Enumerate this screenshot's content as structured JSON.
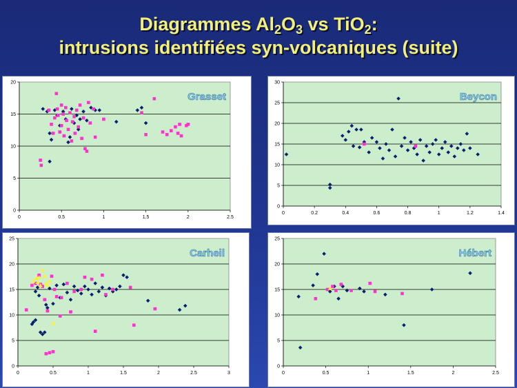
{
  "title": {
    "line1_prefix": "Diagrammes Al",
    "line1_sub1": "2",
    "line1_mid1": "O",
    "line1_sub2": "3",
    "line1_mid2": " vs TiO",
    "line1_sub3": "2",
    "line1_suffix": ":",
    "line2": "intrusions identifiées syn-volcaniques (suite)"
  },
  "colors": {
    "plot_bg": "#cceecc",
    "gridline": "#000000",
    "series_navy": "#0a1f6e",
    "series_magenta": "#ff33cc",
    "series_yellow": "#ffee33"
  },
  "chart_data": [
    {
      "id": "grasset",
      "type": "scatter",
      "title": "Grasset",
      "xlim": [
        0,
        2.5
      ],
      "ylim": [
        0,
        20
      ],
      "xticks": [
        0,
        0.5,
        1,
        1.5,
        2,
        2.5
      ],
      "xtick_labels": [
        "0",
        "0.5",
        "1",
        "1.5",
        "2",
        "2.5"
      ],
      "yticks": [
        0,
        5,
        10,
        15,
        20
      ],
      "ytick_labels": [
        "0",
        "5",
        "10",
        "15",
        "20"
      ],
      "series": [
        {
          "name": "navy",
          "marker": "diamond",
          "color": "#0a1f6e",
          "points": [
            [
              0.28,
              15.8
            ],
            [
              0.33,
              15.4
            ],
            [
              0.36,
              12.0
            ],
            [
              0.38,
              11.0
            ],
            [
              0.42,
              15.6
            ],
            [
              0.45,
              14.8
            ],
            [
              0.48,
              13.2
            ],
            [
              0.52,
              15.4
            ],
            [
              0.55,
              14.2
            ],
            [
              0.58,
              10.6
            ],
            [
              0.6,
              11.4
            ],
            [
              0.62,
              15.8
            ],
            [
              0.65,
              13.6
            ],
            [
              0.68,
              14.8
            ],
            [
              0.7,
              12.6
            ],
            [
              0.72,
              14.2
            ],
            [
              0.76,
              15.4
            ],
            [
              0.8,
              14.0
            ],
            [
              0.85,
              16.0
            ],
            [
              0.9,
              15.6
            ],
            [
              0.95,
              15.6
            ],
            [
              0.36,
              7.6
            ],
            [
              1.15,
              13.8
            ],
            [
              1.4,
              15.6
            ],
            [
              1.45,
              16.0
            ],
            [
              1.5,
              13.6
            ]
          ]
        },
        {
          "name": "magenta",
          "marker": "square",
          "color": "#ff33cc",
          "points": [
            [
              0.25,
              7.8
            ],
            [
              0.26,
              7.0
            ],
            [
              0.35,
              15.6
            ],
            [
              0.38,
              13.4
            ],
            [
              0.4,
              12.0
            ],
            [
              0.42,
              14.4
            ],
            [
              0.44,
              18.2
            ],
            [
              0.45,
              15.8
            ],
            [
              0.46,
              14.8
            ],
            [
              0.48,
              12.2
            ],
            [
              0.5,
              16.4
            ],
            [
              0.5,
              13.2
            ],
            [
              0.52,
              15.0
            ],
            [
              0.53,
              11.6
            ],
            [
              0.55,
              16.0
            ],
            [
              0.56,
              14.0
            ],
            [
              0.58,
              12.6
            ],
            [
              0.6,
              15.2
            ],
            [
              0.62,
              10.8
            ],
            [
              0.63,
              13.8
            ],
            [
              0.65,
              14.6
            ],
            [
              0.66,
              12.0
            ],
            [
              0.68,
              15.6
            ],
            [
              0.7,
              13.0
            ],
            [
              0.72,
              16.4
            ],
            [
              0.74,
              11.2
            ],
            [
              0.76,
              14.4
            ],
            [
              0.78,
              9.6
            ],
            [
              0.8,
              9.2
            ],
            [
              0.82,
              16.8
            ],
            [
              0.84,
              13.6
            ],
            [
              0.88,
              15.8
            ],
            [
              0.9,
              11.4
            ],
            [
              1.0,
              14.2
            ],
            [
              1.45,
              15.2
            ],
            [
              1.5,
              11.8
            ],
            [
              1.6,
              17.4
            ],
            [
              1.7,
              12.2
            ],
            [
              1.75,
              11.8
            ],
            [
              1.8,
              12.4
            ],
            [
              1.85,
              13.0
            ],
            [
              1.88,
              12.0
            ],
            [
              1.9,
              13.4
            ],
            [
              1.92,
              11.6
            ],
            [
              1.98,
              13.2
            ],
            [
              2.0,
              13.4
            ]
          ]
        }
      ]
    },
    {
      "id": "beycon",
      "type": "scatter",
      "title": "Beycon",
      "xlim": [
        0,
        1.4
      ],
      "ylim": [
        0,
        30
      ],
      "xticks": [
        0,
        0.2,
        0.4,
        0.6,
        0.8,
        1,
        1.2,
        1.4
      ],
      "xtick_labels": [
        "0",
        "0.2",
        "0.4",
        "0.6",
        "0.8",
        "1",
        "1.2",
        "1.4"
      ],
      "yticks": [
        0,
        5,
        10,
        15,
        20,
        25,
        30
      ],
      "ytick_labels": [
        "0",
        "5",
        "10",
        "15",
        "20",
        "25",
        "30"
      ],
      "series": [
        {
          "name": "navy",
          "marker": "diamond",
          "color": "#0a1f6e",
          "points": [
            [
              0.02,
              12.5
            ],
            [
              0.3,
              5.2
            ],
            [
              0.3,
              4.4
            ],
            [
              0.38,
              17.0
            ],
            [
              0.4,
              16.0
            ],
            [
              0.42,
              18.0
            ],
            [
              0.44,
              19.4
            ],
            [
              0.45,
              14.5
            ],
            [
              0.47,
              18.5
            ],
            [
              0.49,
              14.2
            ],
            [
              0.5,
              18.5
            ],
            [
              0.52,
              15.5
            ],
            [
              0.55,
              13.0
            ],
            [
              0.57,
              16.5
            ],
            [
              0.6,
              15.5
            ],
            [
              0.62,
              14.0
            ],
            [
              0.64,
              11.5
            ],
            [
              0.66,
              15.0
            ],
            [
              0.68,
              13.5
            ],
            [
              0.7,
              18.5
            ],
            [
              0.72,
              12.0
            ],
            [
              0.74,
              26.0
            ],
            [
              0.76,
              14.5
            ],
            [
              0.78,
              16.5
            ],
            [
              0.8,
              13.5
            ],
            [
              0.82,
              15.5
            ],
            [
              0.84,
              14.0
            ],
            [
              0.86,
              12.5
            ],
            [
              0.88,
              16.0
            ],
            [
              0.9,
              11.0
            ],
            [
              0.92,
              14.5
            ],
            [
              0.94,
              13.0
            ],
            [
              0.96,
              15.0
            ],
            [
              0.98,
              16.0
            ],
            [
              1.0,
              12.5
            ],
            [
              1.02,
              14.0
            ],
            [
              1.04,
              15.5
            ],
            [
              1.06,
              13.0
            ],
            [
              1.08,
              14.5
            ],
            [
              1.1,
              12.0
            ],
            [
              1.12,
              14.0
            ],
            [
              1.14,
              15.0
            ],
            [
              1.16,
              13.5
            ],
            [
              1.18,
              17.5
            ],
            [
              1.2,
              14.0
            ],
            [
              1.25,
              12.5
            ]
          ]
        },
        {
          "name": "magenta",
          "marker": "square",
          "color": "#ff33cc",
          "points": [
            [
              0.52,
              15.0
            ],
            [
              0.85,
              14.5
            ]
          ]
        }
      ]
    },
    {
      "id": "carheil",
      "type": "scatter",
      "title": "Carheil",
      "xlim": [
        0,
        3
      ],
      "ylim": [
        0,
        25
      ],
      "xticks": [
        0,
        0.5,
        1,
        1.5,
        2,
        2.5,
        3
      ],
      "xtick_labels": [
        "0",
        "0.5",
        "1",
        "1.5",
        "2",
        "2.5",
        "3"
      ],
      "yticks": [
        0,
        5,
        10,
        15,
        20,
        25
      ],
      "ytick_labels": [
        "0",
        "5",
        "10",
        "15",
        "20",
        "25"
      ],
      "series": [
        {
          "name": "navy",
          "marker": "diamond",
          "color": "#0a1f6e",
          "points": [
            [
              0.2,
              8.2
            ],
            [
              0.22,
              8.6
            ],
            [
              0.25,
              9.0
            ],
            [
              0.25,
              14.6
            ],
            [
              0.28,
              15.4
            ],
            [
              0.3,
              13.8
            ],
            [
              0.32,
              6.6
            ],
            [
              0.35,
              6.2
            ],
            [
              0.38,
              6.6
            ],
            [
              0.4,
              12.0
            ],
            [
              0.42,
              11.4
            ],
            [
              0.45,
              15.2
            ],
            [
              0.5,
              12.2
            ],
            [
              0.55,
              15.8
            ],
            [
              0.6,
              13.4
            ],
            [
              0.65,
              16.0
            ],
            [
              0.7,
              14.4
            ],
            [
              0.75,
              13.0
            ],
            [
              0.8,
              15.6
            ],
            [
              0.85,
              14.8
            ],
            [
              0.9,
              14.2
            ],
            [
              0.95,
              15.6
            ],
            [
              1.0,
              15.0
            ],
            [
              1.05,
              14.0
            ],
            [
              1.1,
              16.2
            ],
            [
              1.15,
              14.6
            ],
            [
              1.2,
              15.4
            ],
            [
              1.25,
              13.8
            ],
            [
              1.3,
              15.2
            ],
            [
              1.35,
              14.6
            ],
            [
              1.4,
              15.0
            ],
            [
              1.45,
              15.6
            ],
            [
              1.5,
              17.8
            ],
            [
              1.55,
              17.4
            ],
            [
              1.85,
              12.8
            ],
            [
              2.3,
              11.0
            ],
            [
              2.38,
              11.8
            ]
          ]
        },
        {
          "name": "magenta",
          "marker": "square",
          "color": "#ff33cc",
          "points": [
            [
              0.12,
              11.0
            ],
            [
              0.2,
              15.8
            ],
            [
              0.25,
              16.2
            ],
            [
              0.3,
              17.8
            ],
            [
              0.32,
              16.0
            ],
            [
              0.35,
              15.6
            ],
            [
              0.38,
              13.0
            ],
            [
              0.4,
              2.4
            ],
            [
              0.42,
              10.8
            ],
            [
              0.45,
              2.6
            ],
            [
              0.48,
              17.6
            ],
            [
              0.5,
              2.8
            ],
            [
              0.52,
              15.0
            ],
            [
              0.55,
              13.6
            ],
            [
              0.6,
              9.8
            ],
            [
              0.62,
              13.4
            ],
            [
              0.7,
              16.2
            ],
            [
              0.75,
              10.6
            ],
            [
              0.8,
              14.6
            ],
            [
              0.9,
              15.0
            ],
            [
              0.95,
              17.4
            ],
            [
              1.05,
              17.0
            ],
            [
              1.1,
              6.8
            ],
            [
              1.2,
              17.8
            ],
            [
              1.25,
              14.0
            ],
            [
              1.35,
              15.0
            ],
            [
              1.6,
              15.4
            ],
            [
              1.65,
              8.0
            ],
            [
              1.95,
              11.2
            ]
          ]
        },
        {
          "name": "yellow",
          "marker": "triangle",
          "color": "#ffee33",
          "points": [
            [
              0.22,
              16.6
            ],
            [
              0.26,
              17.2
            ],
            [
              0.28,
              16.4
            ],
            [
              0.3,
              17.4
            ],
            [
              0.32,
              15.8
            ],
            [
              0.35,
              18.8
            ],
            [
              0.38,
              17.6
            ],
            [
              0.4,
              16.2
            ],
            [
              0.42,
              15.8
            ],
            [
              0.45,
              16.6
            ],
            [
              0.5,
              8.4
            ]
          ]
        }
      ]
    },
    {
      "id": "hebert",
      "type": "scatter",
      "title": "Hébert",
      "xlim": [
        0,
        2.5
      ],
      "ylim": [
        0,
        25
      ],
      "xticks": [
        0,
        0.5,
        1,
        1.5,
        2,
        2.5
      ],
      "xtick_labels": [
        "0",
        "0.5",
        "1",
        "1.5",
        "2",
        "2.5"
      ],
      "yticks": [
        0,
        5,
        10,
        15,
        20,
        25
      ],
      "ytick_labels": [
        "0",
        "5",
        "10",
        "15",
        "20",
        "25"
      ],
      "series": [
        {
          "name": "navy",
          "marker": "diamond",
          "color": "#0a1f6e",
          "points": [
            [
              0.18,
              13.6
            ],
            [
              0.2,
              3.6
            ],
            [
              0.35,
              15.8
            ],
            [
              0.4,
              18.0
            ],
            [
              0.48,
              22.0
            ],
            [
              0.55,
              14.6
            ],
            [
              0.6,
              15.6
            ],
            [
              0.65,
              13.2
            ],
            [
              0.7,
              15.6
            ],
            [
              0.75,
              14.8
            ],
            [
              0.9,
              15.2
            ],
            [
              0.95,
              14.6
            ],
            [
              1.2,
              14.0
            ],
            [
              1.42,
              8.0
            ],
            [
              1.75,
              15.0
            ],
            [
              2.2,
              18.2
            ]
          ]
        },
        {
          "name": "magenta",
          "marker": "square",
          "color": "#ff33cc",
          "points": [
            [
              0.38,
              13.2
            ],
            [
              0.52,
              15.0
            ],
            [
              0.58,
              15.6
            ],
            [
              0.62,
              14.8
            ],
            [
              0.68,
              16.0
            ],
            [
              0.8,
              14.8
            ],
            [
              1.02,
              16.2
            ],
            [
              1.08,
              14.6
            ],
            [
              1.4,
              14.2
            ]
          ]
        },
        {
          "name": "yellow",
          "marker": "triangle",
          "color": "#ffee33",
          "points": [
            [
              0.55,
              15.2
            ]
          ]
        }
      ]
    }
  ]
}
